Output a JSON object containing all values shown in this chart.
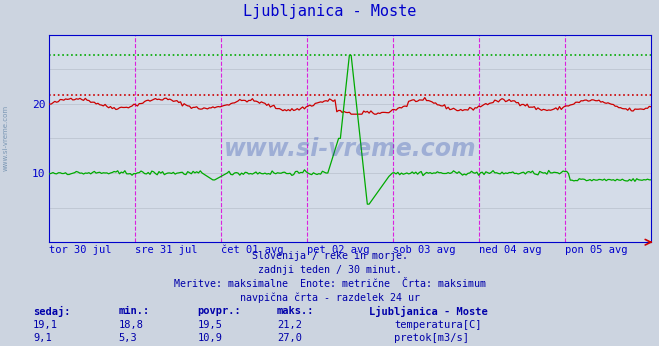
{
  "title": "Ljubljanica - Moste",
  "title_color": "#0000cc",
  "bg_color": "#ccd4e0",
  "plot_bg_color": "#d4dce8",
  "grid_color": "#b8c0cc",
  "x_labels": [
    "tor 30 jul",
    "sre 31 jul",
    "čet 01 avg",
    "pet 02 avg",
    "sob 03 avg",
    "ned 04 avg",
    "pon 05 avg"
  ],
  "y_ticks": [
    10,
    20
  ],
  "y_min": 0,
  "y_max": 30,
  "temp_color": "#cc0000",
  "flow_color": "#00aa00",
  "temp_max_line": 21.2,
  "flow_max_line": 27.0,
  "vline_color": "#dd00dd",
  "axis_color": "#0000cc",
  "tick_color": "#0000cc",
  "watermark": "www.si-vreme.com",
  "watermark_color": "#2244aa",
  "footer_lines": [
    "Slovenija / reke in morje.",
    "zadnji teden / 30 minut.",
    "Meritve: maksimalne  Enote: metrične  Črta: maksimum",
    "navpična črta - razdelek 24 ur"
  ],
  "footer_color": "#0000aa",
  "table_headers": [
    "sedaj:",
    "min.:",
    "povpr.:",
    "maks.:",
    "Ljubljanica - Moste"
  ],
  "table_data": [
    [
      "19,1",
      "18,8",
      "19,5",
      "21,2"
    ],
    [
      "9,1",
      "5,3",
      "10,9",
      "27,0"
    ]
  ],
  "legend_labels": [
    "temperatura[C]",
    "pretok[m3/s]"
  ],
  "legend_colors": [
    "#cc0000",
    "#00aa00"
  ],
  "num_points": 336,
  "sidebar_text": "www.si-vreme.com",
  "sidebar_color": "#6688aa"
}
